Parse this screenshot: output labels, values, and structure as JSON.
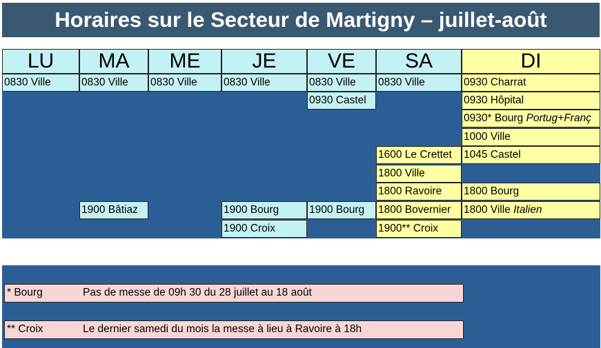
{
  "title": "Horaires sur le Secteur de Martigny – juillet-août",
  "days": [
    "LU",
    "MA",
    "ME",
    "JE",
    "VE",
    "SA",
    "DI"
  ],
  "schedule": {
    "lu": [
      "0830 Ville"
    ],
    "ma": [
      "0830 Ville",
      "1900 Bâtiaz"
    ],
    "me": [
      "0830 Ville"
    ],
    "je": [
      "0830 Ville",
      "1900 Bourg",
      "1900 Croix"
    ],
    "ve": [
      "0830 Ville",
      "0930 Castel",
      "1900 Bourg"
    ],
    "sa": [
      "0830 Ville",
      "1600 Le Crettet",
      "1800 Ville",
      "1800 Ravoire",
      "1800 Bovernier",
      "1900** Croix"
    ],
    "di": [
      "0930 Charrat",
      "0930 Hôpital",
      "0930* Bourg",
      "Portug+Franç",
      "1000 Ville",
      "1045 Castel",
      "1800 Bourg",
      "1800 Ville",
      "Italien"
    ]
  },
  "notes": [
    {
      "mark": "* Bourg",
      "text": "Pas de messe de 09h 30 du 28 juillet au 18 août"
    },
    {
      "mark": "** Croix",
      "text": "Le dernier samedi du mois la messe à lieu à Ravoire à 18h"
    }
  ],
  "colors": {
    "title_bg": "#3b5871",
    "panel_bg": "#2c5e96",
    "weekday_cell": "#c4f1f3",
    "sunday_cell": "#ffffa3",
    "note_bg": "#f9d6d6"
  }
}
